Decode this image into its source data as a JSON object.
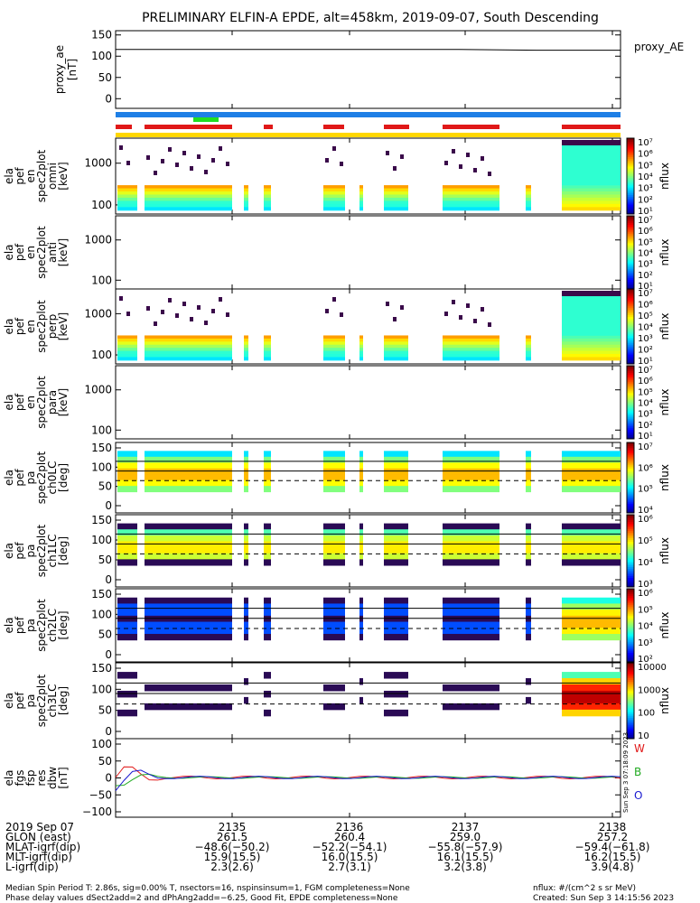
{
  "title": "PRELIMINARY ELFIN-A EPDE, alt=458km, 2019-09-07, South Descending",
  "colors": {
    "bar_blue": "#1e7fe6",
    "bar_red": "#e01818",
    "bar_green": "#22dd22",
    "bar_yellow": "#ffd700",
    "lc_dashed": "#000000"
  },
  "panels": [
    {
      "id": "proxy_ae",
      "ylabel_lines": [
        "proxy_ae",
        "[nT]"
      ],
      "right_label": "proxy_AE",
      "yticks": [
        "150",
        "100",
        "50",
        "0"
      ]
    },
    {
      "id": "omni",
      "ylabel_lines": [
        "ela",
        "pef",
        "en",
        "spec2plot",
        "omni",
        "[keV]"
      ],
      "yticks": [
        "1000",
        "100"
      ],
      "colorbar_ticks": [
        "10⁷",
        "10⁶",
        "10⁵",
        "10⁴",
        "10³",
        "10²",
        "10¹"
      ],
      "colorbar_label": "nflux"
    },
    {
      "id": "anti",
      "ylabel_lines": [
        "ela",
        "pef",
        "en",
        "spec2plot",
        "anti",
        "[keV]"
      ],
      "yticks": [
        "1000",
        "100"
      ],
      "colorbar_ticks": [
        "10⁷",
        "10⁶",
        "10⁵",
        "10⁴",
        "10³",
        "10²",
        "10¹"
      ],
      "colorbar_label": "nflux"
    },
    {
      "id": "perp",
      "ylabel_lines": [
        "ela",
        "pef",
        "en",
        "spec2plot",
        "perp",
        "[keV]"
      ],
      "yticks": [
        "1000",
        "100"
      ],
      "colorbar_ticks": [
        "10⁷",
        "10⁶",
        "10⁵",
        "10⁴",
        "10³",
        "10²",
        "10¹"
      ],
      "colorbar_label": "nflux"
    },
    {
      "id": "para",
      "ylabel_lines": [
        "ela",
        "pef",
        "en",
        "spec2plot",
        "para",
        "[keV]"
      ],
      "yticks": [
        "1000",
        "100"
      ],
      "colorbar_ticks": [
        "10⁷",
        "10⁶",
        "10⁵",
        "10⁴",
        "10³",
        "10²",
        "10¹"
      ],
      "colorbar_label": "nflux"
    },
    {
      "id": "ch0LC",
      "ylabel_lines": [
        "ela",
        "pef",
        "pa",
        "spec2plot",
        "ch0LC",
        "[deg]"
      ],
      "yticks": [
        "150",
        "100",
        "50",
        "0"
      ],
      "colorbar_ticks": [
        "10⁷",
        "10⁶",
        "10⁵",
        "10⁴"
      ],
      "colorbar_label": "nflux"
    },
    {
      "id": "ch1LC",
      "ylabel_lines": [
        "ela",
        "pef",
        "pa",
        "spec2plot",
        "ch1LC",
        "[deg]"
      ],
      "yticks": [
        "150",
        "100",
        "50",
        "0"
      ],
      "colorbar_ticks": [
        "10⁶",
        "10⁵",
        "10⁴",
        "10³"
      ],
      "colorbar_label": "nflux"
    },
    {
      "id": "ch2LC",
      "ylabel_lines": [
        "ela",
        "pef",
        "pa",
        "spec2plot",
        "ch2LC",
        "[deg]"
      ],
      "yticks": [
        "150",
        "100",
        "50",
        "0"
      ],
      "colorbar_ticks": [
        "10⁶",
        "10⁵",
        "10⁴",
        "10³",
        "10²"
      ],
      "colorbar_label": "nflux"
    },
    {
      "id": "ch3LC",
      "ylabel_lines": [
        "ela",
        "pef",
        "pa",
        "spec2plot",
        "ch3LC",
        "[deg]"
      ],
      "yticks": [
        "150",
        "100",
        "50",
        "0"
      ],
      "colorbar_ticks": [
        "10000",
        "1000",
        "100",
        "10"
      ],
      "colorbar_label": "nflux"
    },
    {
      "id": "fgs",
      "ylabel_lines": [
        "ela",
        "fgs",
        "fsp",
        "res",
        "dbw",
        "[nT]"
      ],
      "yticks": [
        "100",
        "50",
        "0",
        "−50",
        "−100"
      ],
      "legend": [
        "W",
        "B",
        "O"
      ],
      "side_note": "Sun Sep 3 07:18:09 2023"
    }
  ],
  "xaxis": {
    "ticks": [
      "2135",
      "2136",
      "2137",
      "2138"
    ],
    "rows": [
      {
        "label": "2019 Sep 07",
        "values": [
          "",
          "",
          "",
          ""
        ]
      },
      {
        "label": "GLON (east)",
        "values": [
          "261.5",
          "260.4",
          "259.0",
          "257.2"
        ]
      },
      {
        "label": "MLAT-igrf(dip)",
        "values": [
          "−48.6(−50.2)",
          "−52.2(−54.1)",
          "−55.8(−57.9)",
          "−59.4(−61.8)"
        ]
      },
      {
        "label": "MLT-igrf(dip)",
        "values": [
          "15.9(15.5)",
          "16.0(15.5)",
          "16.1(15.5)",
          "16.2(15.5)"
        ]
      },
      {
        "label": "L-igrf(dip)",
        "values": [
          "2.3(2.6)",
          "2.7(3.1)",
          "3.2(3.8)",
          "3.9(4.8)"
        ]
      }
    ]
  },
  "footer": {
    "line1": "Median Spin Period T: 2.86s, sig=0.00% T, nsectors=16, nspinsinsum=1, FGM completeness=None",
    "line2": "Phase delay values dSect2add=2 and dPhAng2add=−6.25, Good Fit, EPDE completeness=None",
    "right1": "nflux: #/(cm^2 s sr MeV)",
    "right2": "Created: Sun Sep  3 14:15:56 2023"
  },
  "chart_data": {
    "type": "heatmap",
    "title": "PRELIMINARY ELFIN-A EPDE, alt=458km, 2019-09-07, South Descending",
    "x_ticks": [
      "2135",
      "2136",
      "2137",
      "2138"
    ],
    "proxy_ae": {
      "ylim": [
        -10,
        160
      ],
      "values": [
        116,
        116,
        116,
        116,
        116,
        114,
        114
      ]
    },
    "energy_ylim_keV": [
      60,
      6000
    ],
    "pa_ylim_deg": [
      0,
      180
    ],
    "loss_cone_lines_deg": [
      115,
      90
    ],
    "loss_cone_dashed_deg": 65,
    "fgs_ylim_nT": [
      -110,
      110
    ],
    "legend": [
      "W",
      "B",
      "O"
    ]
  }
}
